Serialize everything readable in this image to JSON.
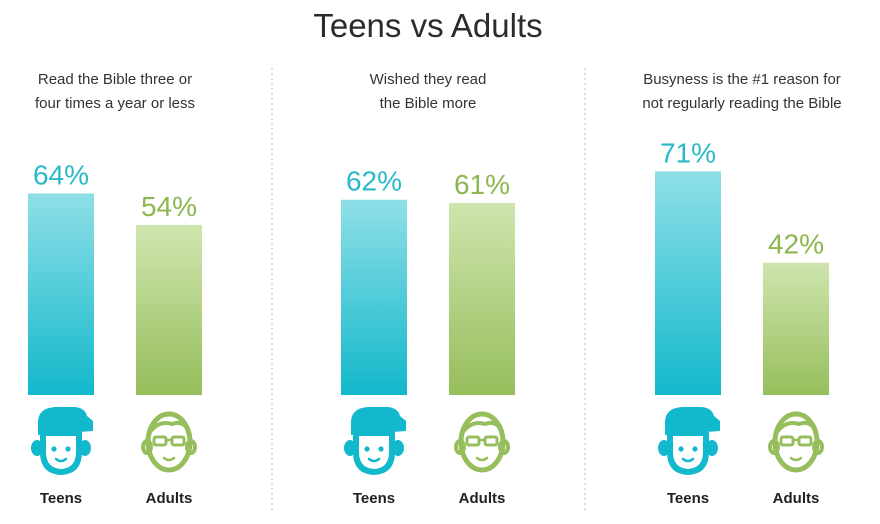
{
  "colors": {
    "teens_top": "#8FDFE7",
    "teens_bottom": "#12B8CB",
    "adults_top": "#CEE5AE",
    "adults_bottom": "#97BE5C",
    "teens_text": "#2AB9C9",
    "adults_text": "#8DB64F",
    "divider": "#bbbbbb"
  },
  "icons": {
    "teens": "teen-face-cap-icon",
    "adults": "adult-face-glasses-icon"
  },
  "chart_data": {
    "type": "bar",
    "title": "Teens vs Adults",
    "unit": "%",
    "ylim": [
      0,
      100
    ],
    "series_names": [
      "Teens",
      "Adults"
    ],
    "panels": [
      {
        "subtitle": [
          "Read the Bible three or",
          "four times a year or less"
        ],
        "values": [
          64,
          54
        ],
        "value_labels": [
          "64%",
          "54%"
        ]
      },
      {
        "subtitle": [
          "Wished they read",
          "the Bible more"
        ],
        "values": [
          62,
          61
        ],
        "value_labels": [
          "62%",
          "61%"
        ]
      },
      {
        "subtitle": [
          "Busyness is the #1 reason for",
          "not regularly reading the Bible"
        ],
        "values": [
          71,
          42
        ],
        "value_labels": [
          "71%",
          "42%"
        ]
      }
    ]
  }
}
